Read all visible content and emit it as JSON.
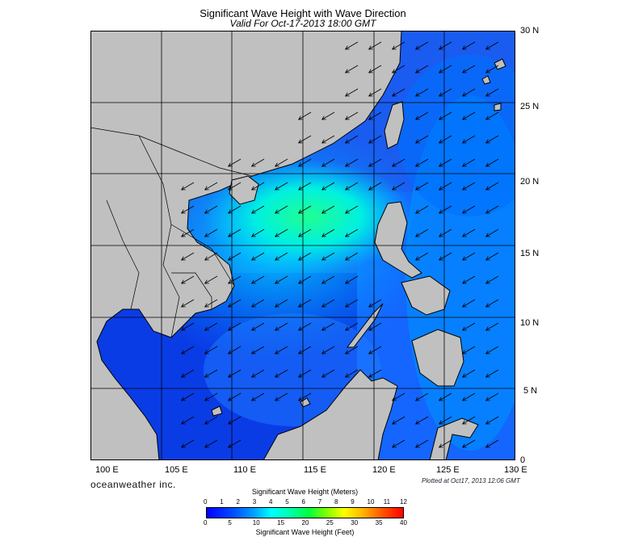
{
  "header": {
    "title": "Significant Wave Height with Wave Direction",
    "valid": "Valid For Oct-17-2013 18:00 GMT"
  },
  "map": {
    "lat_labels": [
      "30 N",
      "25 N",
      "20 N",
      "15 N",
      "10 N",
      "5 N",
      "0"
    ],
    "lon_labels": [
      "100 E",
      "105 E",
      "110 E",
      "115 E",
      "120 E",
      "125 E",
      "130 E"
    ],
    "lat_range": [
      0,
      30
    ],
    "lon_range": [
      100,
      130
    ],
    "land_color": "#c0c0c0",
    "wave_direction": "arrows point toward the southwest"
  },
  "footer": {
    "brand": "oceanweather inc.",
    "plotted": "Plotted at Oct17, 2013 12:06 GMT"
  },
  "colorbar": {
    "meters_title": "Significant Wave Height (Meters)",
    "meters_ticks": [
      "0",
      "1",
      "2",
      "3",
      "4",
      "5",
      "6",
      "7",
      "8",
      "9",
      "10",
      "11",
      "12"
    ],
    "feet_title": "Significant Wave Height (Feet)",
    "feet_ticks": [
      "0",
      "5",
      "10",
      "15",
      "20",
      "25",
      "30",
      "35",
      "40"
    ],
    "colors": [
      "#0000ff",
      "#0050ff",
      "#00a0ff",
      "#00ffff",
      "#00ffb0",
      "#00ff40",
      "#80ff00",
      "#ffff00",
      "#ffb000",
      "#ff5000",
      "#ff0000"
    ]
  }
}
